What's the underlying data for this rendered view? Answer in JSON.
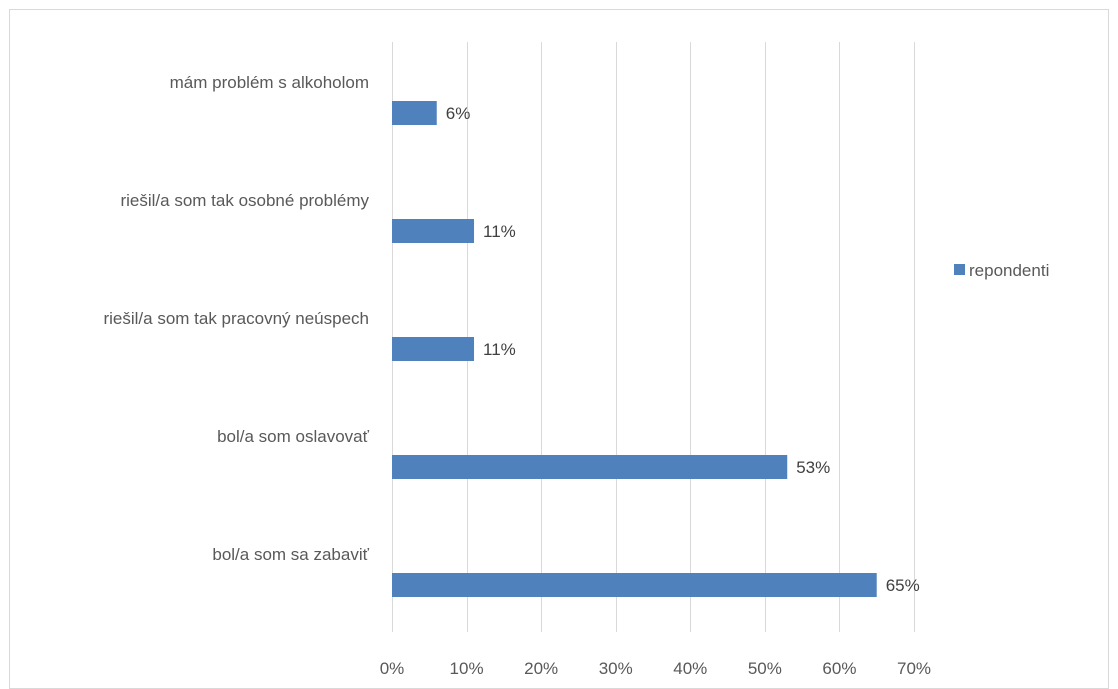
{
  "chart_data": {
    "type": "bar",
    "orientation": "horizontal",
    "categories": [
      "mám problém s alkoholom",
      "riešil/a som tak osobné problémy",
      "riešil/a som tak pracovný neúspech",
      "bol/a som oslavovať",
      "bol/a som sa zabaviť"
    ],
    "series": [
      {
        "name": "repondenti",
        "values": [
          6,
          11,
          11,
          53,
          65
        ],
        "data_labels": [
          "6%",
          "11%",
          "11%",
          "53%",
          "65%"
        ],
        "color": "#4f81bd"
      }
    ],
    "x_ticks": [
      "0%",
      "10%",
      "20%",
      "30%",
      "40%",
      "50%",
      "60%",
      "70%"
    ],
    "xlim": [
      0,
      70
    ],
    "grid": "vertical",
    "grid_color": "#d9d9d9",
    "legend": "right"
  }
}
